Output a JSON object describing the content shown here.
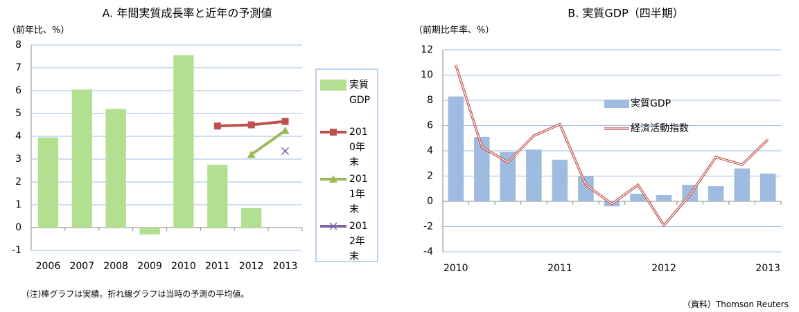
{
  "chart_data": [
    {
      "type": "bar",
      "title": "A. 年間実質成長率と近年の予測値",
      "y_label": "（前年比、%）",
      "categories": [
        "2006",
        "2007",
        "2008",
        "2009",
        "2010",
        "2011",
        "2012",
        "2013"
      ],
      "series": [
        {
          "name": "実質GDP",
          "type": "bar",
          "color": "#b3df91",
          "values": [
            3.95,
            6.05,
            5.2,
            -0.3,
            7.55,
            2.75,
            0.85,
            null
          ]
        },
        {
          "name": "2010年末",
          "type": "line",
          "marker": "square",
          "color": "#c0504d",
          "values": [
            null,
            null,
            null,
            null,
            null,
            4.45,
            4.5,
            4.65
          ]
        },
        {
          "name": "2011年末",
          "type": "line",
          "marker": "triangle",
          "color": "#9bbb59",
          "values": [
            null,
            null,
            null,
            null,
            null,
            null,
            3.2,
            4.25
          ]
        },
        {
          "name": "2012年末",
          "type": "line",
          "marker": "x",
          "color": "#8064a2",
          "values": [
            null,
            null,
            null,
            null,
            null,
            null,
            null,
            3.35
          ]
        }
      ],
      "ylim": [
        -1,
        8
      ],
      "yticks": [
        -1,
        0,
        1,
        2,
        3,
        4,
        5,
        6,
        7,
        8
      ],
      "grid": true,
      "legend": "right"
    },
    {
      "type": "bar",
      "title": "B. 実質GDP（四半期）",
      "y_label": "（前期比年率、%）",
      "categories": [
        "2010",
        null,
        null,
        null,
        "2011",
        null,
        null,
        null,
        "2012",
        null,
        null,
        null,
        "2013"
      ],
      "series": [
        {
          "name": "実質GDP",
          "type": "bar",
          "color": "#9fbbe0",
          "values": [
            8.3,
            5.1,
            3.9,
            4.1,
            3.3,
            2.0,
            -0.4,
            0.6,
            0.5,
            1.3,
            1.2,
            2.6,
            2.2
          ]
        },
        {
          "name": "経済活動指数",
          "type": "line",
          "color": "#c0504d",
          "values": [
            10.8,
            4.3,
            3.1,
            5.2,
            6.1,
            1.3,
            -0.2,
            1.3,
            -1.9,
            0.5,
            3.5,
            2.9,
            4.9
          ]
        }
      ],
      "ylim": [
        -4,
        12
      ],
      "yticks": [
        -4,
        -2,
        0,
        2,
        4,
        6,
        8,
        10,
        12
      ],
      "grid": true,
      "legend": "inside"
    }
  ],
  "note": "(注)棒グラフは実績。折れ線グラフは当時の予測の平均値。",
  "source": "（資料）Thomson Reuters"
}
